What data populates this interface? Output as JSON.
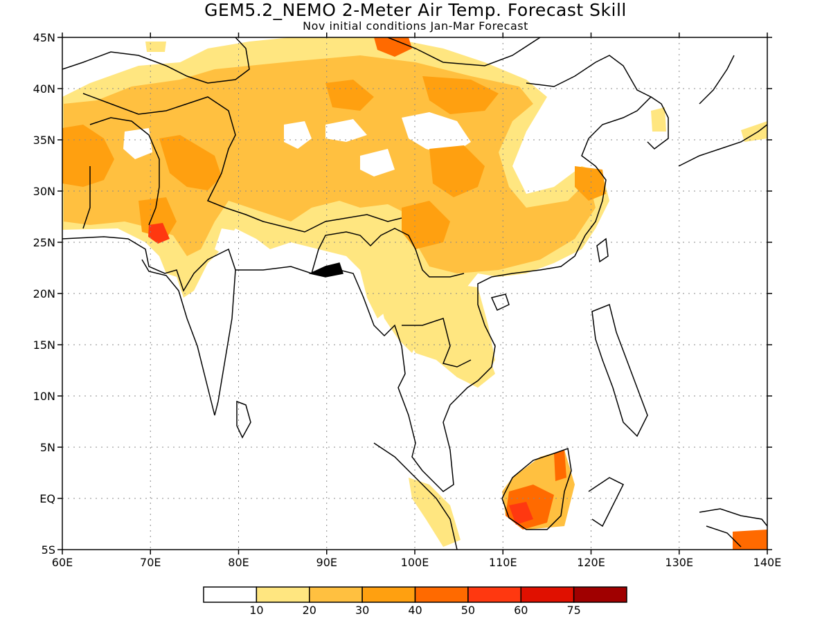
{
  "header": {
    "title": "GEM5.2_NEMO 2-Meter Air Temp. Forecast Skill",
    "subtitle": "Nov initial conditions  Jan-Mar Forecast"
  },
  "map": {
    "lon_range": [
      60,
      140
    ],
    "lat_range": [
      -5,
      45
    ],
    "x_ticks": [
      {
        "lon": 60,
        "label": "60E"
      },
      {
        "lon": 70,
        "label": "70E"
      },
      {
        "lon": 80,
        "label": "80E"
      },
      {
        "lon": 90,
        "label": "90E"
      },
      {
        "lon": 100,
        "label": "100E"
      },
      {
        "lon": 110,
        "label": "110E"
      },
      {
        "lon": 120,
        "label": "120E"
      },
      {
        "lon": 130,
        "label": "130E"
      },
      {
        "lon": 140,
        "label": "140E"
      }
    ],
    "y_ticks": [
      {
        "lat": 45,
        "label": "45N"
      },
      {
        "lat": 40,
        "label": "40N"
      },
      {
        "lat": 35,
        "label": "35N"
      },
      {
        "lat": 30,
        "label": "30N"
      },
      {
        "lat": 25,
        "label": "25N"
      },
      {
        "lat": 20,
        "label": "20N"
      },
      {
        "lat": 15,
        "label": "15N"
      },
      {
        "lat": 10,
        "label": "10N"
      },
      {
        "lat": 5,
        "label": "5N"
      },
      {
        "lat": 0,
        "label": "EQ"
      },
      {
        "lat": -5,
        "label": "5S"
      }
    ],
    "gridlines": true
  },
  "colorbar": {
    "bins": [
      {
        "color": "#ffffff"
      },
      {
        "color": "#ffe680"
      },
      {
        "color": "#ffc040"
      },
      {
        "color": "#ffa010"
      },
      {
        "color": "#ff6a00"
      },
      {
        "color": "#ff3810"
      },
      {
        "color": "#e01000"
      },
      {
        "color": "#a00000"
      }
    ],
    "labels": [
      "10",
      "20",
      "30",
      "40",
      "50",
      "60",
      "75"
    ]
  }
}
